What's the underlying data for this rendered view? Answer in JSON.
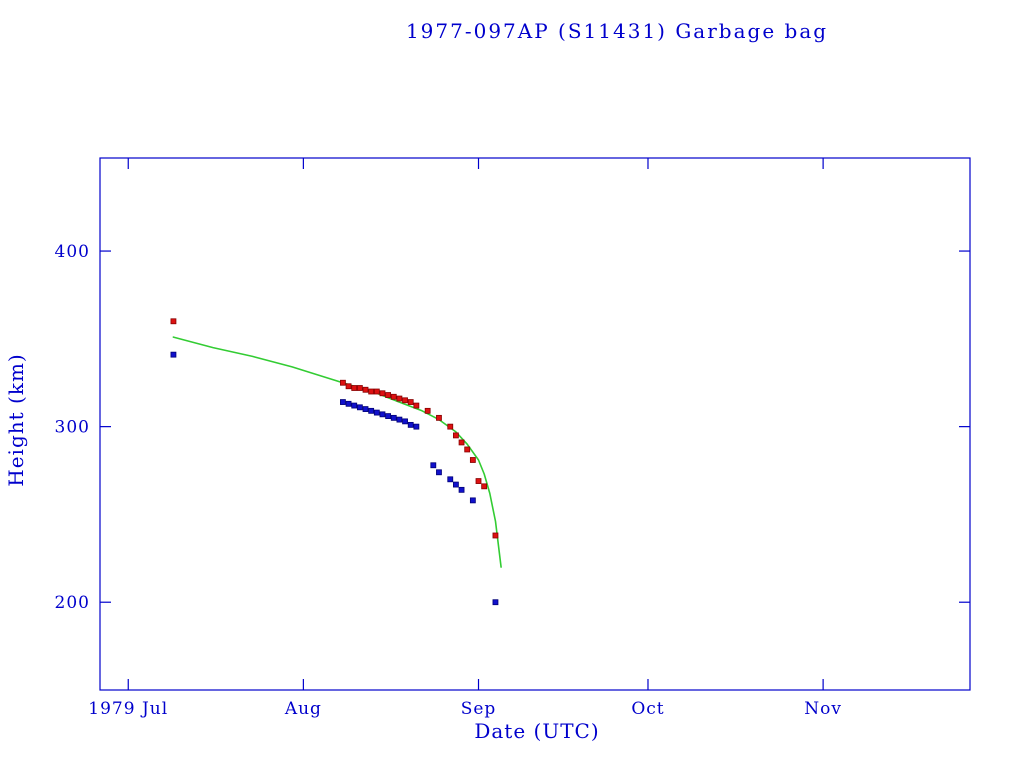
{
  "page": {
    "background_color": "#ffffff",
    "text_color": "#0000cc"
  },
  "chart_data": {
    "type": "scatter",
    "title": "1977-097AP (S11431) Garbage bag",
    "xlabel": "Date (UTC)",
    "ylabel": "Height (km)",
    "frame_color": "#0000cc",
    "text_color": "#0000cc",
    "grid": false,
    "legend": "none",
    "x_domain": [
      "1979-06-26",
      "1979-11-27"
    ],
    "ylim": [
      150,
      453
    ],
    "y_ticks": [
      200,
      300,
      400
    ],
    "x_ticks": [
      {
        "label": "1979 Jul",
        "date": "1979-07-01"
      },
      {
        "label": "Aug",
        "date": "1979-08-01"
      },
      {
        "label": "Sep",
        "date": "1979-09-01"
      },
      {
        "label": "Oct",
        "date": "1979-10-01"
      },
      {
        "label": "Nov",
        "date": "1979-11-01"
      }
    ],
    "series": [
      {
        "name": "fitted-mean-height",
        "type": "line",
        "color": "#33cc33",
        "points": [
          [
            "1979-07-09",
            351
          ],
          [
            "1979-07-16",
            345
          ],
          [
            "1979-07-23",
            340
          ],
          [
            "1979-07-30",
            334
          ],
          [
            "1979-08-05",
            328
          ],
          [
            "1979-08-10",
            323
          ],
          [
            "1979-08-14",
            319
          ],
          [
            "1979-08-18",
            314
          ],
          [
            "1979-08-22",
            309
          ],
          [
            "1979-08-25",
            304
          ],
          [
            "1979-08-28",
            297
          ],
          [
            "1979-08-30",
            290
          ],
          [
            "1979-09-01",
            281
          ],
          [
            "1979-09-02",
            273
          ],
          [
            "1979-09-03",
            262
          ],
          [
            "1979-09-04",
            246
          ],
          [
            "1979-09-05",
            220
          ]
        ]
      },
      {
        "name": "apogee-height",
        "type": "scatter",
        "marker": "square",
        "color": "#dd1111",
        "edge_color": "#880000",
        "points": [
          [
            "1979-07-09",
            360
          ],
          [
            "1979-08-08",
            325
          ],
          [
            "1979-08-09",
            323
          ],
          [
            "1979-08-10",
            322
          ],
          [
            "1979-08-11",
            322
          ],
          [
            "1979-08-12",
            321
          ],
          [
            "1979-08-13",
            320
          ],
          [
            "1979-08-14",
            320
          ],
          [
            "1979-08-15",
            319
          ],
          [
            "1979-08-16",
            318
          ],
          [
            "1979-08-17",
            317
          ],
          [
            "1979-08-18",
            316
          ],
          [
            "1979-08-19",
            315
          ],
          [
            "1979-08-20",
            314
          ],
          [
            "1979-08-21",
            312
          ],
          [
            "1979-08-23",
            309
          ],
          [
            "1979-08-25",
            305
          ],
          [
            "1979-08-27",
            300
          ],
          [
            "1979-08-28",
            295
          ],
          [
            "1979-08-29",
            291
          ],
          [
            "1979-08-30",
            287
          ],
          [
            "1979-08-31",
            281
          ],
          [
            "1979-09-01",
            269
          ],
          [
            "1979-09-02",
            266
          ],
          [
            "1979-09-04",
            238
          ]
        ]
      },
      {
        "name": "perigee-height",
        "type": "scatter",
        "marker": "square",
        "color": "#1111cc",
        "edge_color": "#000077",
        "points": [
          [
            "1979-07-09",
            341
          ],
          [
            "1979-08-08",
            314
          ],
          [
            "1979-08-09",
            313
          ],
          [
            "1979-08-10",
            312
          ],
          [
            "1979-08-11",
            311
          ],
          [
            "1979-08-12",
            310
          ],
          [
            "1979-08-13",
            309
          ],
          [
            "1979-08-14",
            308
          ],
          [
            "1979-08-15",
            307
          ],
          [
            "1979-08-16",
            306
          ],
          [
            "1979-08-17",
            305
          ],
          [
            "1979-08-18",
            304
          ],
          [
            "1979-08-19",
            303
          ],
          [
            "1979-08-20",
            301
          ],
          [
            "1979-08-21",
            300
          ],
          [
            "1979-08-24",
            278
          ],
          [
            "1979-08-25",
            274
          ],
          [
            "1979-08-27",
            270
          ],
          [
            "1979-08-28",
            267
          ],
          [
            "1979-08-29",
            264
          ],
          [
            "1979-08-31",
            258
          ],
          [
            "1979-09-04",
            200
          ]
        ]
      }
    ]
  }
}
